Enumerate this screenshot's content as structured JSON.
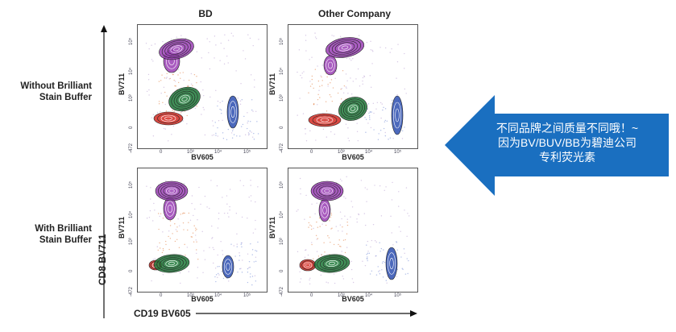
{
  "columns": {
    "left": "BD",
    "right": "Other Company"
  },
  "rows": {
    "top": [
      "Without Brilliant",
      "Stain Buffer"
    ],
    "bottom": [
      "With Brilliant",
      "Stain Buffer"
    ]
  },
  "panel_axis": {
    "y": "BV711",
    "x": "BV605",
    "y_ticks": [
      "10⁵",
      "10⁴",
      "10³",
      "0"
    ],
    "x_ticks": [
      "0",
      "10³",
      "10⁴",
      "10⁵"
    ],
    "corner": "-472"
  },
  "global_axis": {
    "y": "CD8 BV711",
    "x": "CD19 BV605"
  },
  "callout": {
    "line1": "不同品牌之间质量不同哦！~",
    "line2": "因为BV/BUV/BB为碧迪公司",
    "line3": "专利荧光素"
  },
  "colors": {
    "arrow": "#1a6fc0",
    "purple": "#9a3fb5",
    "green": "#1f7a3a",
    "red": "#d42a22",
    "blue": "#2d4fb0",
    "orange": "#e07a3a"
  }
}
